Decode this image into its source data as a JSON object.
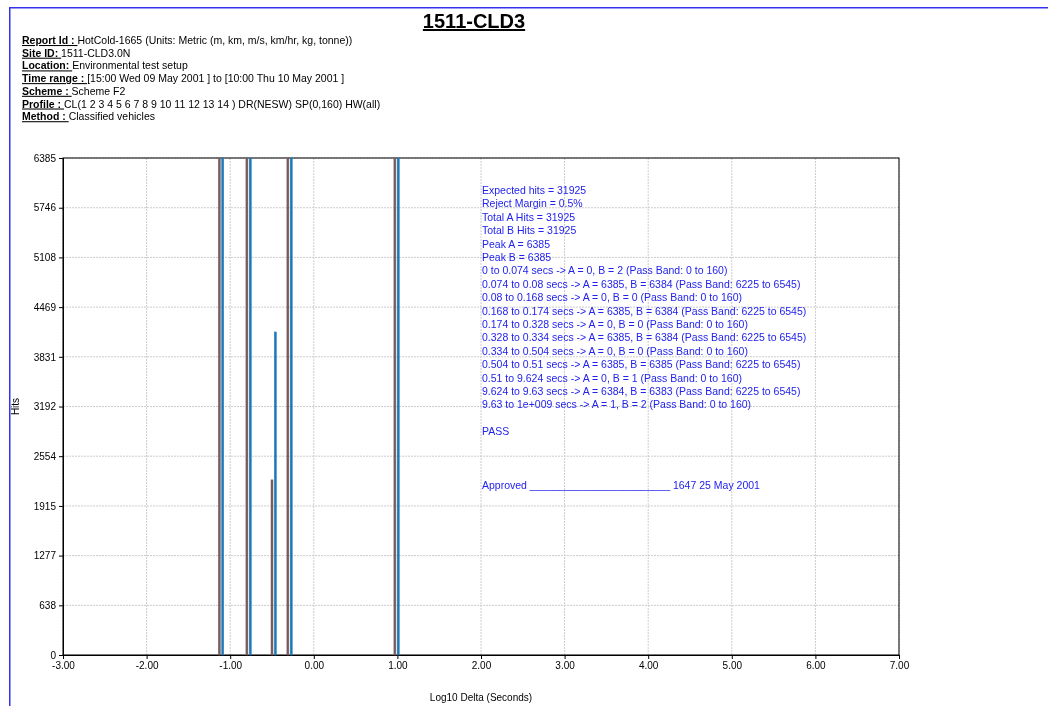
{
  "chart_data": {
    "type": "bar",
    "title": "1511-CLD3",
    "subtitle": "Report Id : HotCold-1665 (Units: Metric (m, km, m/s, km/hr, kg, tonne))\nSite ID: 1511-CLD3.0N\nLocation: Environmental test setup\nTime range : [15:00 Wed 09 May 2001 ] to [10:00 Thu 10 May 2001 ]\nScheme : Scheme F2\nProfile : CL(1 2 3 4 5 6 7 8 9 10 11 12 13 14 ) DR(NESW) SP(0,160) HW(all)\nMethod : Classified vehicles",
    "xlabel": "Log10 Delta (Seconds)",
    "ylabel": "Hits",
    "xlim": [
      -3,
      7
    ],
    "xticks": [
      {
        "value": -3,
        "label": "-3.00"
      },
      {
        "value": -2,
        "label": "-2.00"
      },
      {
        "value": -1,
        "label": "-1.00"
      },
      {
        "value": 0,
        "label": "0.00"
      },
      {
        "value": 1,
        "label": "1.00"
      },
      {
        "value": 2,
        "label": "2.00"
      },
      {
        "value": 3,
        "label": "3.00"
      },
      {
        "value": 4,
        "label": "4.00"
      },
      {
        "value": 5,
        "label": "5.00"
      },
      {
        "value": 6,
        "label": "6.00"
      },
      {
        "value": 7,
        "label": "7.00"
      }
    ],
    "ylim": [
      0,
      6385
    ],
    "yticks": [
      0,
      638,
      1277,
      1915,
      2554,
      3192,
      3831,
      4469,
      5108,
      5746,
      6385
    ],
    "grid": true,
    "series": [
      {
        "color": "#7a5c5c",
        "x": [
          -1.13,
          -0.8,
          -0.5,
          -0.31,
          0.97
        ],
        "values": [
          6385,
          6385,
          2250,
          6385,
          6385
        ]
      },
      {
        "color": "#1a7ab8",
        "x": [
          -1.09,
          -0.76,
          -0.46,
          -0.27,
          1.01
        ],
        "values": [
          6385,
          6385,
          4150,
          6385,
          6385
        ]
      }
    ],
    "annotations": [
      "Expected hits = 31925",
      "Reject Margin = 0.5%",
      "Total A Hits = 31925",
      "Total B Hits = 31925",
      "Peak A = 6385",
      "Peak B = 6385",
      "0 to 0.074 secs -> A = 0, B = 2 (Pass Band: 0 to 160)",
      "0.074 to 0.08 secs -> A = 6385, B = 6384 (Pass Band: 6225 to 6545)",
      "0.08 to 0.168 secs -> A = 0, B = 0 (Pass Band: 0 to 160)",
      "0.168 to 0.174 secs -> A = 6385, B = 6384 (Pass Band: 6225 to 6545)",
      "0.174 to 0.328 secs -> A = 0, B = 0 (Pass Band: 0 to 160)",
      "0.328 to 0.334 secs -> A = 6385, B = 6384 (Pass Band: 6225 to 6545)",
      "0.334 to 0.504 secs -> A = 0, B = 0 (Pass Band: 0 to 160)",
      "0.504 to 0.51 secs -> A = 6385, B = 6385 (Pass Band: 6225 to 6545)",
      "0.51 to 9.624 secs -> A = 0, B = 1 (Pass Band: 0 to 160)",
      "9.624 to 9.63 secs -> A = 6384, B = 6383 (Pass Band: 6225 to 6545)",
      "9.63 to 1e+009 secs -> A = 1, B = 2 (Pass Band: 0 to 160)",
      "PASS",
      "Approved ________________________ 1647 25 May 2001"
    ]
  }
}
